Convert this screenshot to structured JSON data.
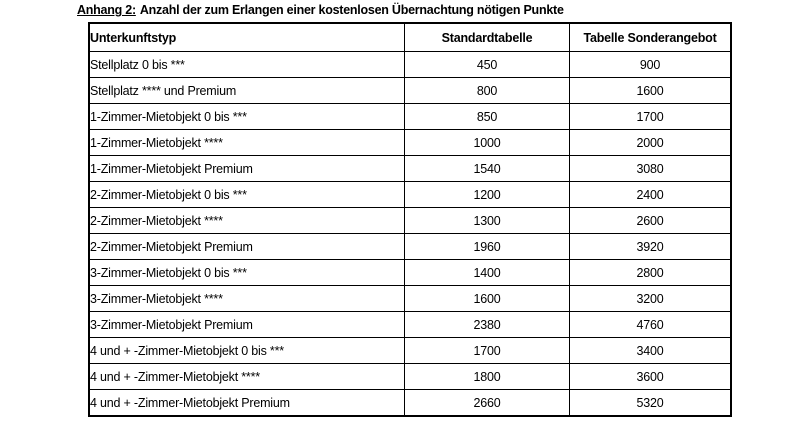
{
  "page": {
    "title": {
      "prefix": "Anhang 2:",
      "rest": "Anzahl der zum Erlangen einer kostenlosen Übernachtung nötigen Punkte"
    },
    "table": {
      "headers": {
        "type": "Unterkunftstyp",
        "standard": "Standardtabelle",
        "sonder": "Tabelle Sonderangebot"
      },
      "rows": [
        {
          "type": "Stellplatz 0 bis ***",
          "standard": "450",
          "sonder": "900"
        },
        {
          "type": "Stellplatz **** und Premium",
          "standard": "800",
          "sonder": "1600"
        },
        {
          "type": "1-Zimmer-Mietobjekt 0 bis ***",
          "standard": "850",
          "sonder": "1700"
        },
        {
          "type": "1-Zimmer-Mietobjekt ****",
          "standard": "1000",
          "sonder": "2000"
        },
        {
          "type": "1-Zimmer-Mietobjekt Premium",
          "standard": "1540",
          "sonder": "3080"
        },
        {
          "type": "2-Zimmer-Mietobjekt 0 bis ***",
          "standard": "1200",
          "sonder": "2400"
        },
        {
          "type": "2-Zimmer-Mietobjekt ****",
          "standard": "1300",
          "sonder": "2600"
        },
        {
          "type": "2-Zimmer-Mietobjekt Premium",
          "standard": "1960",
          "sonder": "3920"
        },
        {
          "type": "3-Zimmer-Mietobjekt 0 bis ***",
          "standard": "1400",
          "sonder": "2800"
        },
        {
          "type": "3-Zimmer-Mietobjekt ****",
          "standard": "1600",
          "sonder": "3200"
        },
        {
          "type": "3-Zimmer-Mietobjekt Premium",
          "standard": "2380",
          "sonder": "4760"
        },
        {
          "type": "4 und + -Zimmer-Mietobjekt 0 bis ***",
          "standard": "1700",
          "sonder": "3400"
        },
        {
          "type": "4 und + -Zimmer-Mietobjekt ****",
          "standard": "1800",
          "sonder": "3600"
        },
        {
          "type": "4 und + -Zimmer-Mietobjekt Premium",
          "standard": "2660",
          "sonder": "5320"
        }
      ]
    }
  }
}
